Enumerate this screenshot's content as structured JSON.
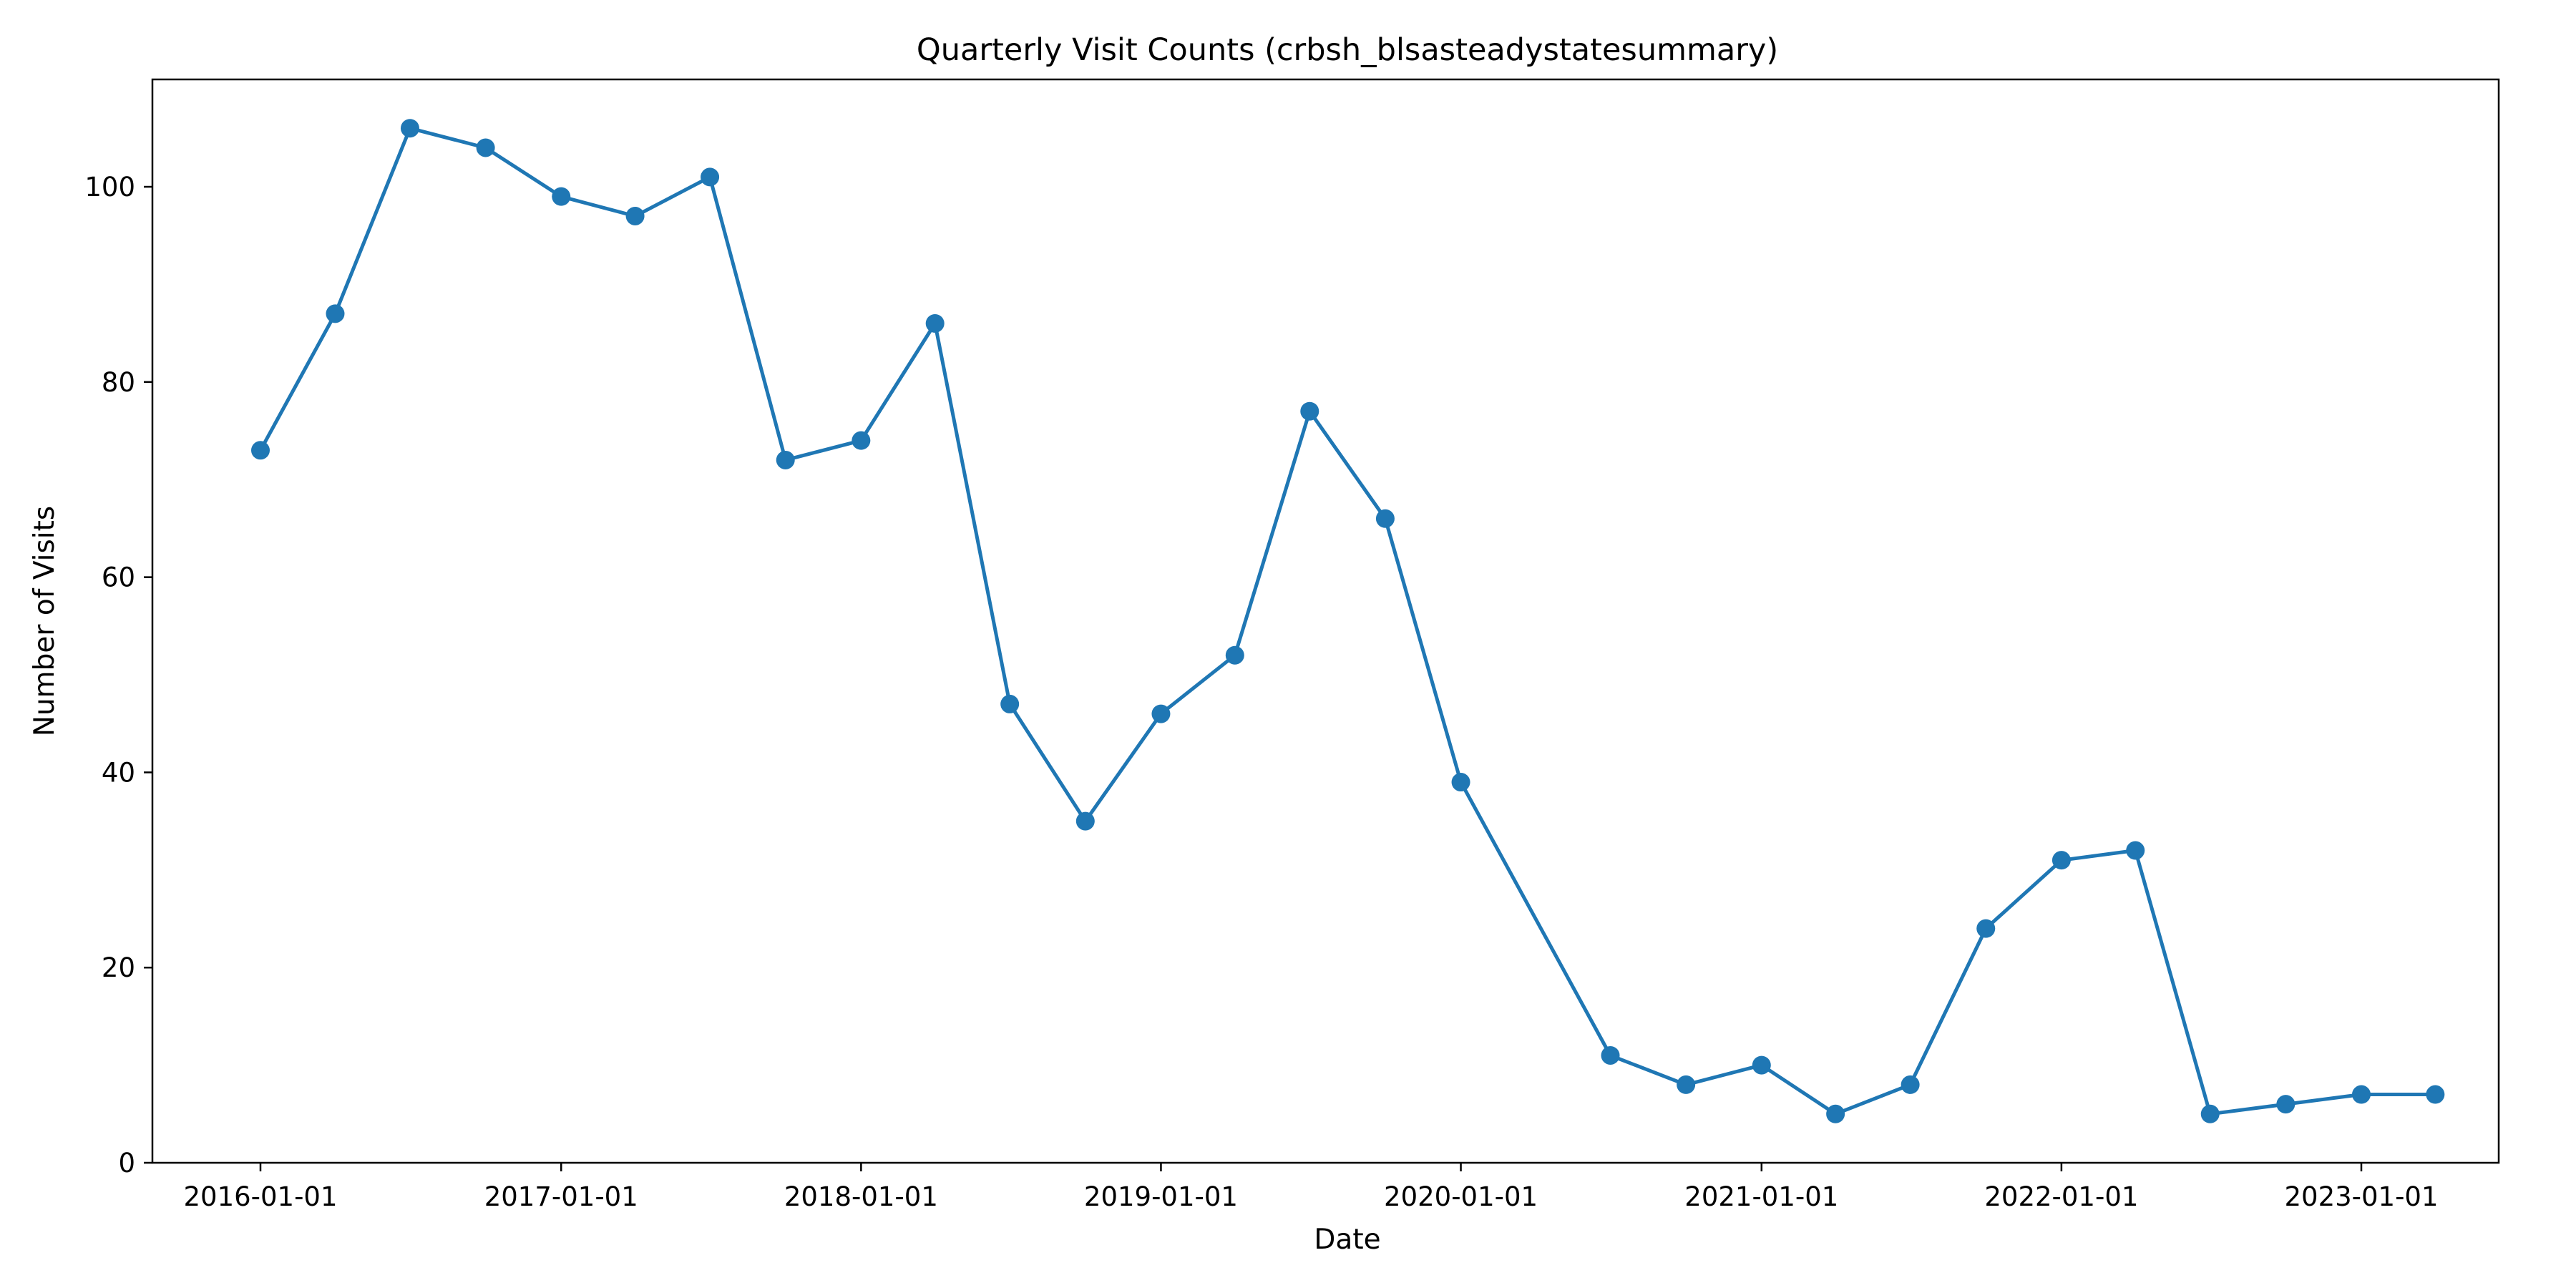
{
  "chart_data": {
    "type": "line",
    "title": "Quarterly Visit Counts (crbsh_blsasteadystatesummary)",
    "xlabel": "Date",
    "ylabel": "Number of Visits",
    "ylim": [
      0,
      111
    ],
    "x_ticks": [
      "2016-01-01",
      "2017-01-01",
      "2018-01-01",
      "2019-01-01",
      "2020-01-01",
      "2021-01-01",
      "2022-01-01",
      "2023-01-01"
    ],
    "y_ticks": [
      0,
      20,
      40,
      60,
      80,
      100
    ],
    "grid": false,
    "legend": "none",
    "series": [
      {
        "color": "#1f77b4",
        "marker": "circle",
        "points": [
          {
            "x": "2016-01-01",
            "y": 73
          },
          {
            "x": "2016-04-01",
            "y": 87
          },
          {
            "x": "2016-07-01",
            "y": 106
          },
          {
            "x": "2016-10-01",
            "y": 104
          },
          {
            "x": "2017-01-01",
            "y": 99
          },
          {
            "x": "2017-04-01",
            "y": 97
          },
          {
            "x": "2017-07-01",
            "y": 101
          },
          {
            "x": "2017-10-01",
            "y": 72
          },
          {
            "x": "2018-01-01",
            "y": 74
          },
          {
            "x": "2018-04-01",
            "y": 86
          },
          {
            "x": "2018-07-01",
            "y": 47
          },
          {
            "x": "2018-10-01",
            "y": 35
          },
          {
            "x": "2019-01-01",
            "y": 46
          },
          {
            "x": "2019-04-01",
            "y": 52
          },
          {
            "x": "2019-07-01",
            "y": 77
          },
          {
            "x": "2019-10-01",
            "y": 66
          },
          {
            "x": "2020-01-01",
            "y": 39
          },
          {
            "x": "2020-07-01",
            "y": 11
          },
          {
            "x": "2020-10-01",
            "y": 8
          },
          {
            "x": "2021-01-01",
            "y": 10
          },
          {
            "x": "2021-04-01",
            "y": 5
          },
          {
            "x": "2021-07-01",
            "y": 8
          },
          {
            "x": "2021-10-01",
            "y": 24
          },
          {
            "x": "2022-01-01",
            "y": 31
          },
          {
            "x": "2022-04-01",
            "y": 32
          },
          {
            "x": "2022-07-01",
            "y": 5
          },
          {
            "x": "2022-10-01",
            "y": 6
          },
          {
            "x": "2023-01-01",
            "y": 7
          },
          {
            "x": "2023-04-01",
            "y": 7
          }
        ]
      }
    ]
  }
}
